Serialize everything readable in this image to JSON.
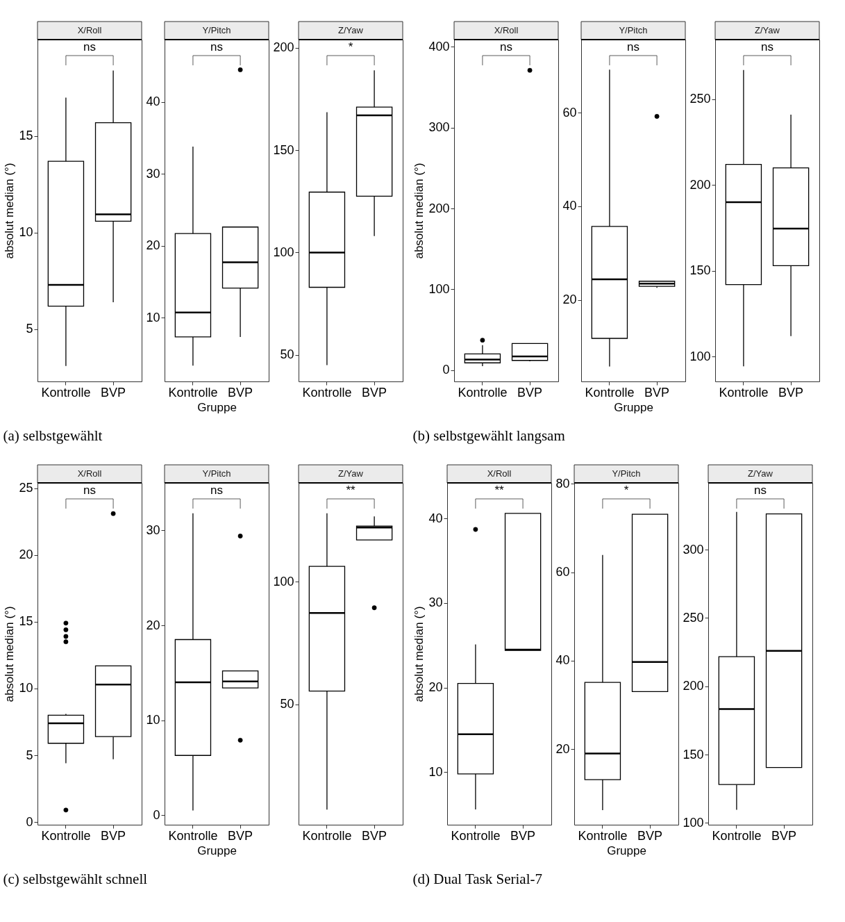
{
  "chart_data": [
    {
      "type": "box",
      "title": "X/Roll",
      "categories": [
        "Kontrolle",
        "BVP"
      ],
      "ylabel": "absolut median (°)",
      "ylim": [
        2.3,
        20.0
      ],
      "yticks": [
        5,
        10,
        15
      ],
      "grid": false,
      "annotations": [
        "ns"
      ],
      "boxes": [
        {
          "low": 3.1,
          "q1": 6.2,
          "median": 7.3,
          "q3": 13.7,
          "high": 17.0
        },
        {
          "low": 6.4,
          "q1": 10.6,
          "median": 10.95,
          "q3": 15.7,
          "high": 18.4
        }
      ]
    },
    {
      "type": "box",
      "title": "Y/Pitch",
      "categories": [
        "Kontrolle",
        "BVP"
      ],
      "xlabel": "Gruppe",
      "ylim": [
        1.1,
        48.7
      ],
      "yticks": [
        10,
        20,
        30,
        40
      ],
      "grid": false,
      "annotations": [
        "ns",
        "(a) selbstgewählt"
      ],
      "boxes": [
        {
          "low": 3.3,
          "q1": 7.3,
          "median": 10.7,
          "q3": 21.7,
          "high": 33.8
        },
        {
          "low": 7.3,
          "q1": 14.1,
          "median": 17.7,
          "q3": 22.6,
          "high": 22.6,
          "outliers": [
            44.5
          ]
        }
      ]
    },
    {
      "type": "box",
      "title": "Z/Yaw",
      "categories": [
        "Kontrolle",
        "BVP"
      ],
      "ylim": [
        37,
        204
      ],
      "yticks": [
        50,
        100,
        150,
        200
      ],
      "grid": false,
      "annotations": [
        "*"
      ],
      "boxes": [
        {
          "low": 45,
          "q1": 83,
          "median": 100,
          "q3": 129.5,
          "high": 168.5
        },
        {
          "low": 108,
          "q1": 127.5,
          "median": 167,
          "q3": 171,
          "high": 189
        }
      ]
    },
    {
      "type": "box",
      "title": "X/Roll",
      "categories": [
        "Kontrolle",
        "BVP"
      ],
      "ylabel": "absolut median (°)",
      "ylim": [
        -14,
        409
      ],
      "yticks": [
        0,
        100,
        200,
        300,
        400
      ],
      "grid": false,
      "annotations": [
        "ns"
      ],
      "boxes": [
        {
          "low": 5,
          "q1": 9,
          "median": 13,
          "q3": 20,
          "high": 31,
          "outliers": [
            37
          ]
        },
        {
          "low": 11,
          "q1": 12,
          "median": 17,
          "q3": 33,
          "high": 33,
          "outliers": [
            371
          ]
        }
      ]
    },
    {
      "type": "box",
      "title": "Y/Pitch",
      "categories": [
        "Kontrolle",
        "BVP"
      ],
      "xlabel": "Gruppe",
      "ylim": [
        2.6,
        75.6
      ],
      "yticks": [
        20,
        40,
        60
      ],
      "grid": false,
      "annotations": [
        "ns",
        "(b) selbstgewählt langsam"
      ],
      "boxes": [
        {
          "low": 5.8,
          "q1": 11.8,
          "median": 24.4,
          "q3": 35.7,
          "high": 69.2
        },
        {
          "low": 22.6,
          "q1": 22.9,
          "median": 23.5,
          "q3": 24.0,
          "high": 24.0,
          "outliers": [
            59.2
          ]
        }
      ]
    },
    {
      "type": "box",
      "title": "Z/Yaw",
      "categories": [
        "Kontrolle",
        "BVP"
      ],
      "ylim": [
        85.6,
        284.7
      ],
      "yticks": [
        100,
        150,
        200,
        250
      ],
      "grid": false,
      "annotations": [
        "ns"
      ],
      "boxes": [
        {
          "low": 94.4,
          "q1": 142,
          "median": 190,
          "q3": 212,
          "high": 267
        },
        {
          "low": 112,
          "q1": 153,
          "median": 174.6,
          "q3": 210,
          "high": 241
        }
      ]
    },
    {
      "type": "box",
      "title": "X/Roll",
      "categories": [
        "Kontrolle",
        "BVP"
      ],
      "ylabel": "absolut median (°)",
      "ylim": [
        -0.2,
        25.4
      ],
      "yticks": [
        0,
        5,
        10,
        15,
        20,
        25
      ],
      "grid": false,
      "annotations": [
        "ns"
      ],
      "boxes": [
        {
          "low": 4.4,
          "q1": 5.9,
          "median": 7.4,
          "q3": 8.0,
          "high": 8.1,
          "outliers": [
            14.9,
            14.4,
            13.9,
            13.5,
            0.9
          ]
        },
        {
          "low": 4.7,
          "q1": 6.4,
          "median": 10.3,
          "q3": 11.7,
          "high": 11.7,
          "outliers": [
            23.1
          ]
        }
      ]
    },
    {
      "type": "box",
      "title": "Y/Pitch",
      "categories": [
        "Kontrolle",
        "BVP"
      ],
      "xlabel": "Gruppe",
      "ylim": [
        -1.0,
        35.0
      ],
      "yticks": [
        0,
        10,
        20,
        30
      ],
      "grid": false,
      "annotations": [
        "ns",
        "(c) selbstgewählt schnell"
      ],
      "boxes": [
        {
          "low": 0.5,
          "q1": 6.3,
          "median": 14.0,
          "q3": 18.5,
          "high": 31.8
        },
        {
          "low": 13.4,
          "q1": 13.4,
          "median": 14.1,
          "q3": 15.2,
          "high": 15.2,
          "outliers": [
            29.4,
            7.9
          ]
        }
      ]
    },
    {
      "type": "box",
      "title": "Z/Yaw",
      "categories": [
        "Kontrolle",
        "BVP"
      ],
      "ylim": [
        0.8,
        140.4
      ],
      "yticks": [
        50,
        100
      ],
      "grid": false,
      "annotations": [
        "**"
      ],
      "boxes": [
        {
          "low": 7,
          "q1": 55.4,
          "median": 87.3,
          "q3": 106.3,
          "high": 128
        },
        {
          "low": 117.1,
          "q1": 117.1,
          "median": 122.2,
          "q3": 122.8,
          "high": 126.7,
          "outliers": [
            89.4
          ]
        }
      ]
    },
    {
      "type": "box",
      "title": "X/Roll",
      "categories": [
        "Kontrolle",
        "BVP"
      ],
      "ylabel": "absolut median (°)",
      "ylim": [
        3.8,
        44.2
      ],
      "yticks": [
        10,
        20,
        30,
        40
      ],
      "grid": false,
      "annotations": [
        "**"
      ],
      "boxes": [
        {
          "low": 5.6,
          "q1": 9.8,
          "median": 14.5,
          "q3": 20.5,
          "high": 25.1,
          "outliers": [
            38.7
          ]
        },
        {
          "low": 24.4,
          "q1": 24.4,
          "median": 24.5,
          "q3": 40.6,
          "high": 40.6
        }
      ]
    },
    {
      "type": "box",
      "title": "Y/Pitch",
      "categories": [
        "Kontrolle",
        "BVP"
      ],
      "xlabel": "Gruppe",
      "ylim": [
        2.9,
        80.2
      ],
      "yticks": [
        20,
        40,
        60,
        80
      ],
      "grid": false,
      "annotations": [
        "*",
        "(d) Dual Task Serial-7"
      ],
      "boxes": [
        {
          "low": 6.2,
          "q1": 13.1,
          "median": 19.0,
          "q3": 35.1,
          "high": 63.9
        },
        {
          "low": 33.0,
          "q1": 33.0,
          "median": 39.7,
          "q3": 73.1,
          "high": 73.1
        }
      ]
    },
    {
      "type": "box",
      "title": "Z/Yaw",
      "categories": [
        "Kontrolle",
        "BVP"
      ],
      "ylim": [
        98.7,
        348.9
      ],
      "yticks": [
        100,
        150,
        200,
        250,
        300
      ],
      "grid": false,
      "annotations": [
        "ns"
      ],
      "boxes": [
        {
          "low": 109.6,
          "q1": 128.1,
          "median": 183.4,
          "q3": 221.7,
          "high": 327.7
        },
        {
          "low": 140.6,
          "q1": 140.6,
          "median": 225.9,
          "q3": 326.2,
          "high": 326.2
        }
      ]
    }
  ]
}
